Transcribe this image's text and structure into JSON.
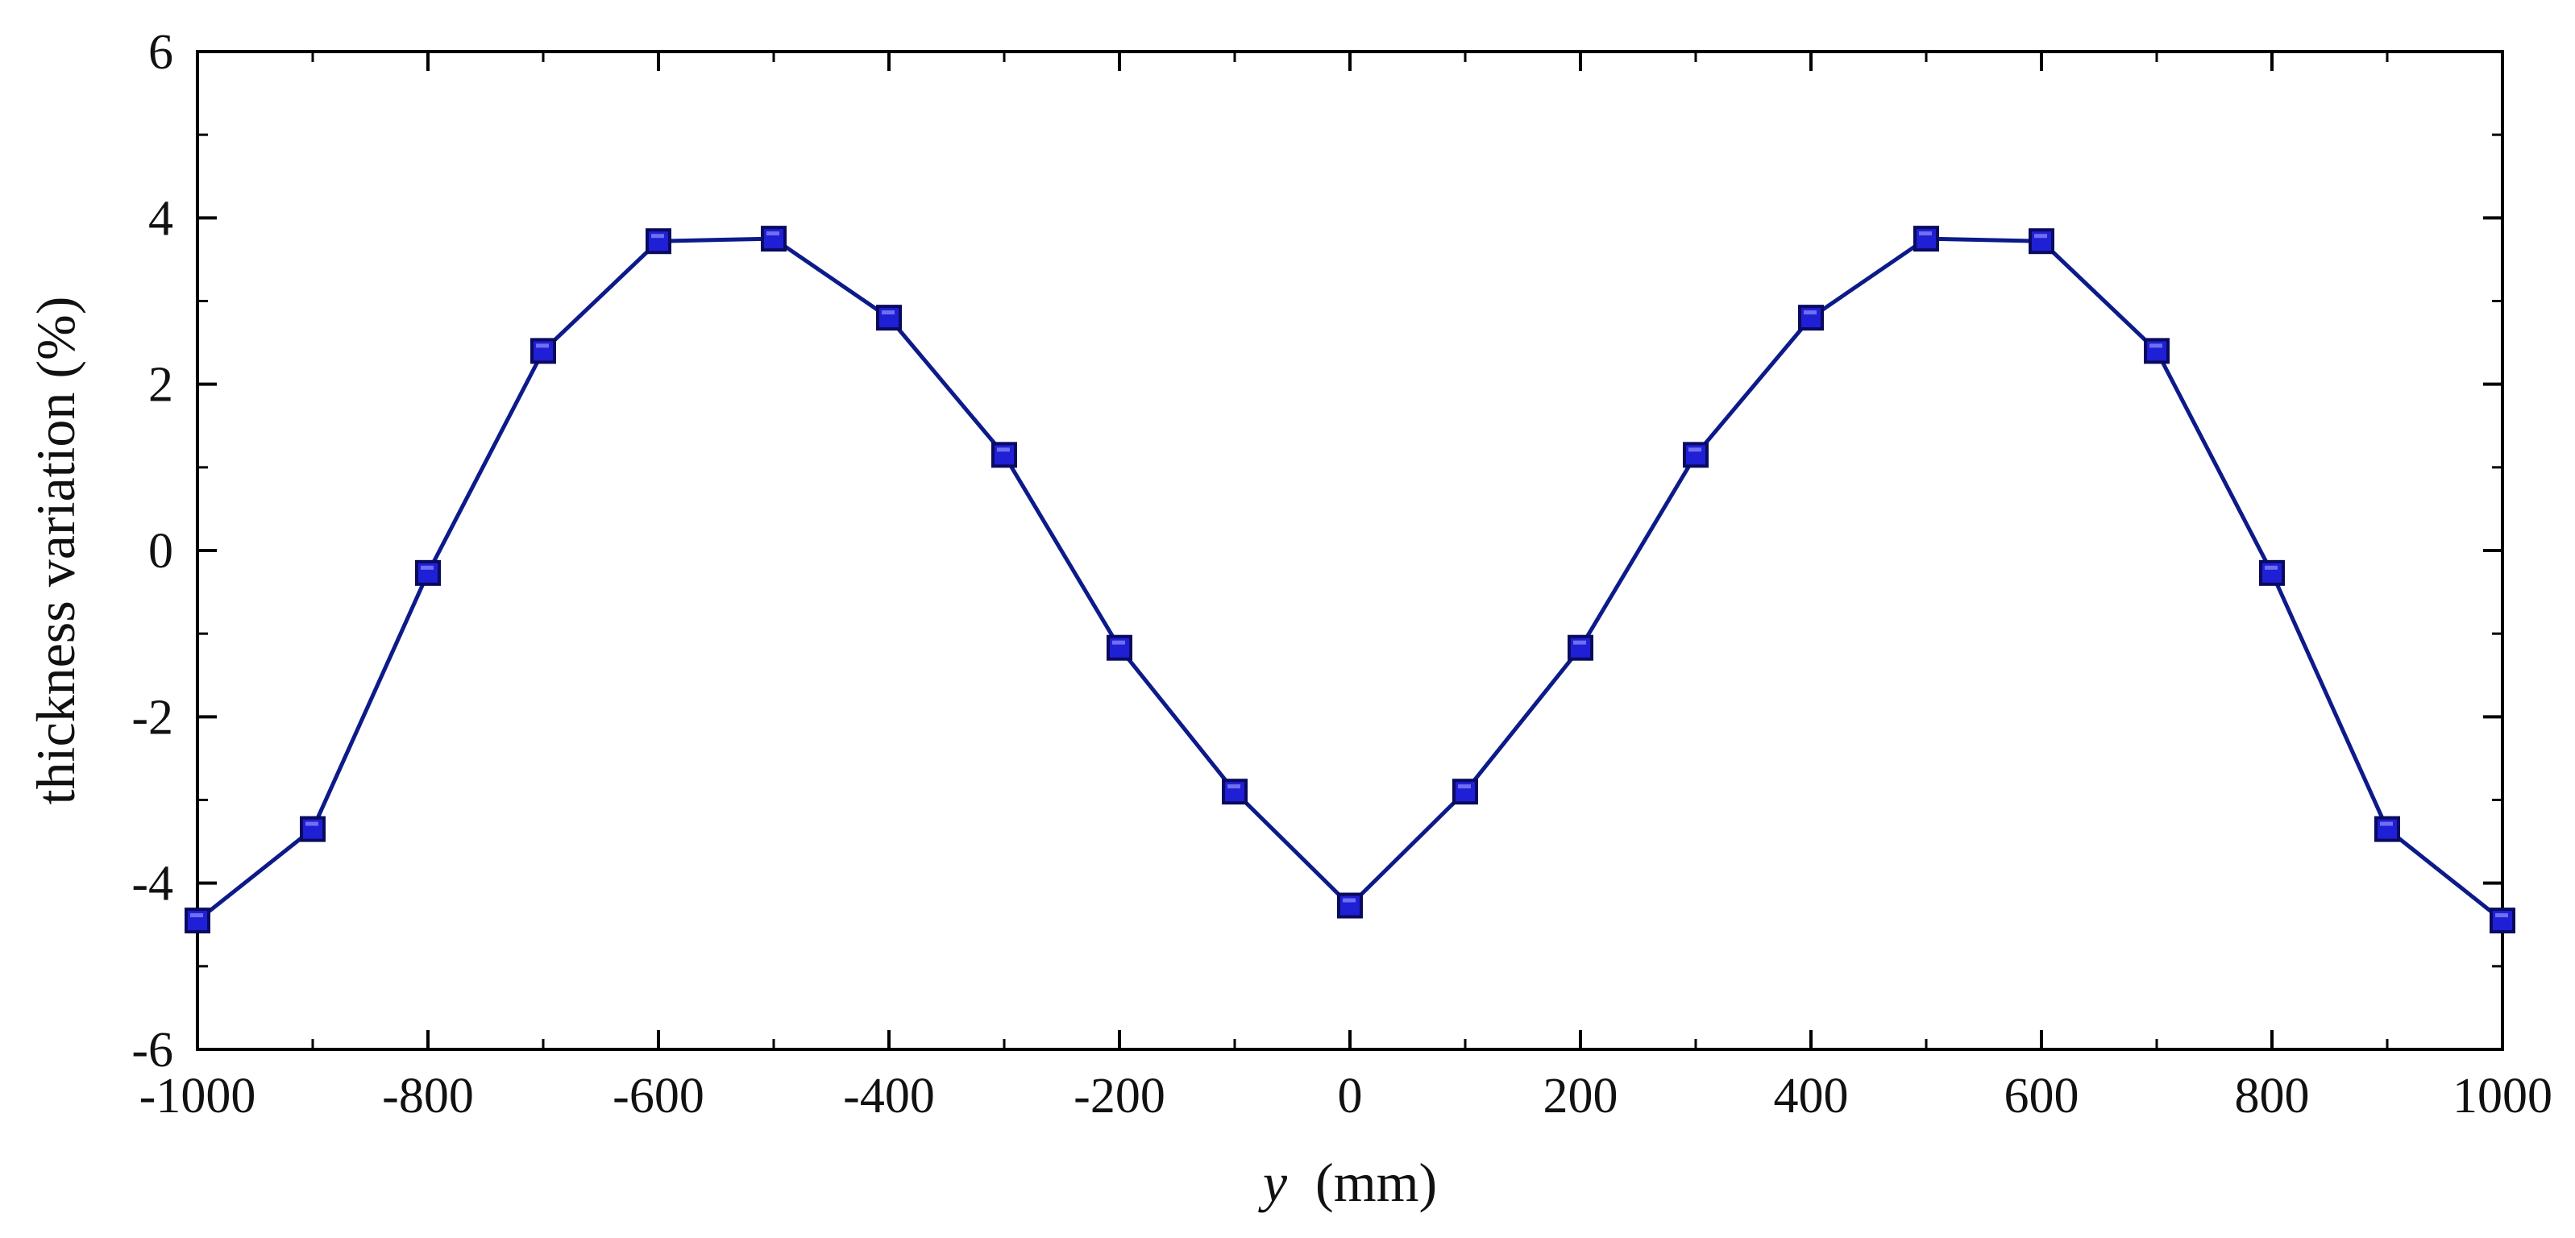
{
  "chart_data": {
    "type": "line",
    "title": "",
    "xlabel": "(mm)",
    "xlabel_symbol": "y",
    "ylabel": "thickness variation (%)",
    "xlim": [
      -1000,
      1000
    ],
    "ylim": [
      -6,
      6
    ],
    "x_ticks": [
      -1000,
      -800,
      -600,
      -400,
      -200,
      0,
      200,
      400,
      600,
      800,
      1000
    ],
    "x_tick_labels": [
      "-1000",
      "-800",
      "-600",
      "-400",
      "-200",
      "0",
      "200",
      "400",
      "600",
      "800",
      "1000"
    ],
    "y_ticks": [
      -6,
      -4,
      -2,
      0,
      2,
      4,
      6
    ],
    "y_tick_labels": [
      "-6",
      "-4",
      "-2",
      "0",
      "2",
      "4",
      "6"
    ],
    "grid": false,
    "legend": "none",
    "series": [
      {
        "name": "thickness variation",
        "marker": "square",
        "color": "#1f1fd6",
        "line_color": "#0c1a8a",
        "x": [
          -1000,
          -900,
          -800,
          -700,
          -600,
          -500,
          -400,
          -300,
          -200,
          -100,
          0,
          100,
          200,
          300,
          400,
          500,
          600,
          700,
          800,
          900,
          1000
        ],
        "values": [
          -4.45,
          -3.35,
          -0.27,
          2.4,
          3.72,
          3.75,
          2.8,
          1.15,
          -1.17,
          -2.9,
          -4.27,
          -2.9,
          -1.17,
          1.15,
          2.8,
          3.75,
          3.72,
          2.4,
          -0.27,
          -3.35,
          -4.45
        ]
      }
    ]
  }
}
